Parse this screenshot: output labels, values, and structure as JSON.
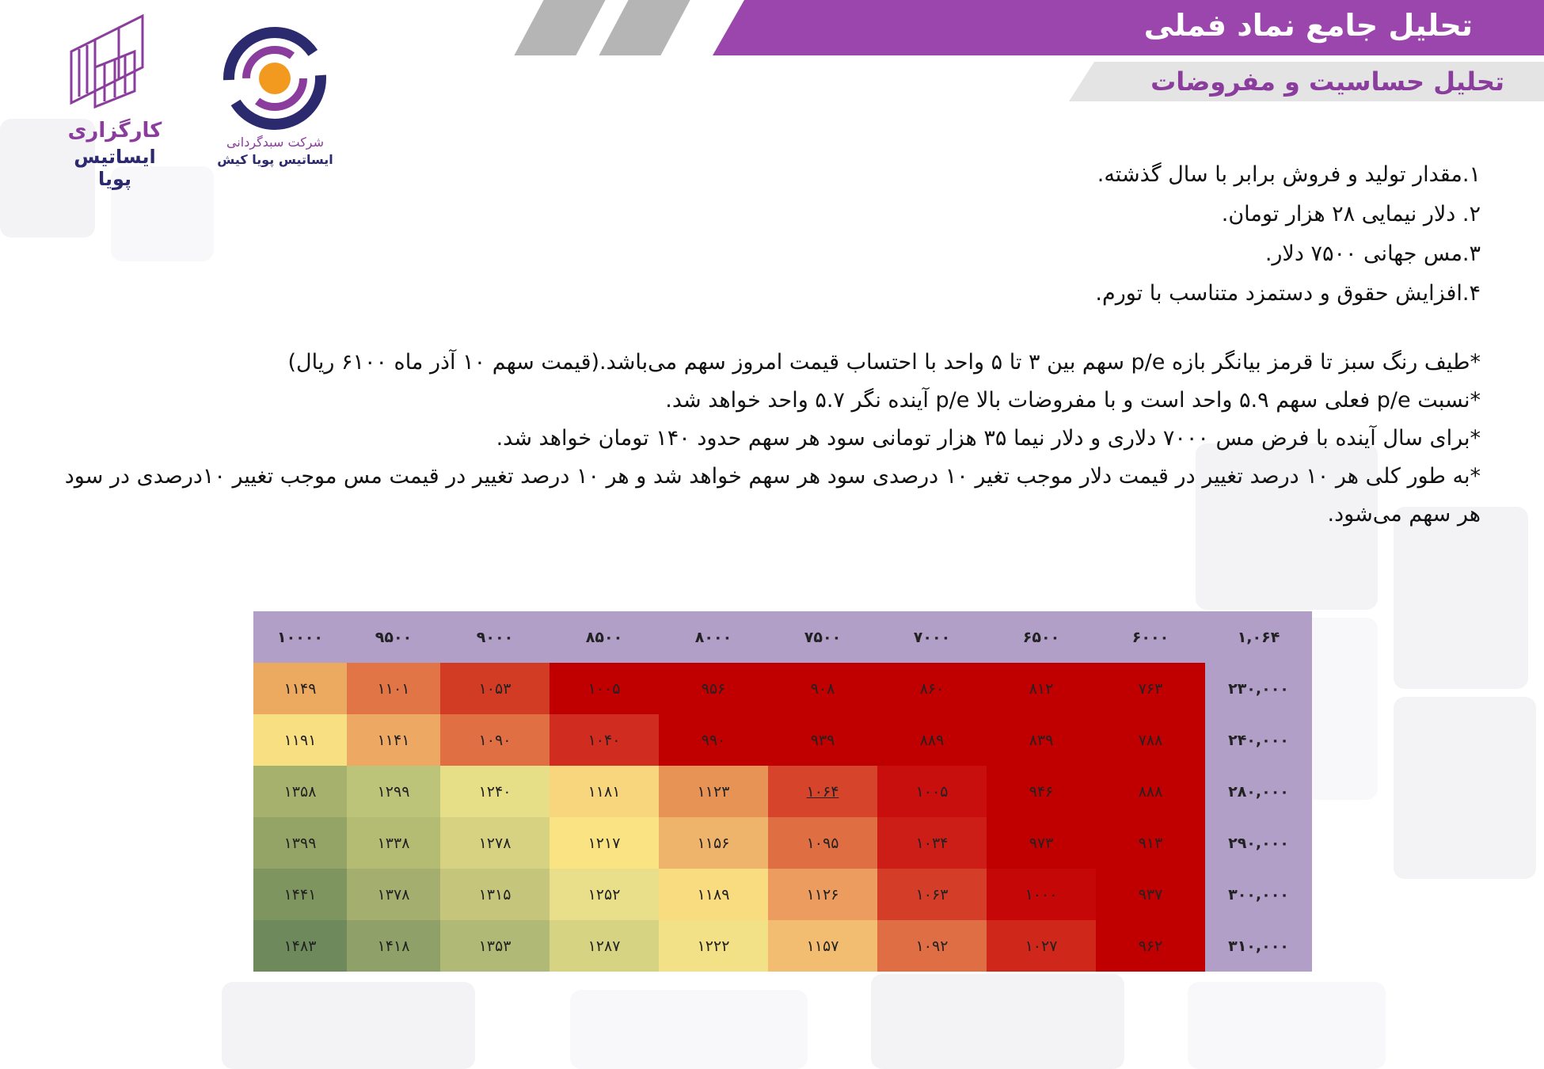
{
  "header": {
    "title": "تحلیل جامع نماد فملی",
    "subtitle": "تحلیل حساسیت و مفروضات"
  },
  "logos": {
    "broker_line1": "کارگزاری",
    "broker_line2": "ایساتیس پویا",
    "fund_line1": "شرکت سبدگردانی",
    "fund_line2": "ایساتیس پویا کیش"
  },
  "assumptions": [
    "۱.مقدار تولید و فروش برابر با سال گذشته.",
    "۲. دلار نیمایی ۲۸ هزار تومان.",
    "۳.مس جهانی ۷۵۰۰ دلار.",
    "۴.افزایش حقوق و دستمزد متناسب با تورم."
  ],
  "notes": [
    "*طیف رنگ سبز تا قرمز بیانگر بازه p/e سهم بین ۳ تا ۵ واحد با احتساب قیمت امروز سهم می‌باشد.(قیمت سهم ۱۰ آذر ماه ۶۱۰۰ ریال)",
    "*نسبت p/e فعلی سهم ۵.۹ واحد است و با مفروضات بالا p/e آینده نگر ۵.۷ واحد خواهد شد.",
    "*برای سال آینده با فرض مس ۷۰۰۰ دلاری و دلار نیما ۳۵ هزار تومانی سود هر سهم حدود ۱۴۰ تومان خواهد شد.",
    "*به طور کلی هر ۱۰ درصد تغییر در قیمت دلار موجب تغیر ۱۰ درصدی سود هر سهم خواهد شد و هر ۱۰ درصد تغییر در قیمت مس موجب تغییر ۱۰درصدی در سود هر سهم می‌شود."
  ],
  "table": {
    "corner": "۱,۰۶۴",
    "columns": [
      "۶۰۰۰",
      "۶۵۰۰",
      "۷۰۰۰",
      "۷۵۰۰",
      "۸۰۰۰",
      "۸۵۰۰",
      "۹۰۰۰",
      "۹۵۰۰",
      "۱۰۰۰۰"
    ],
    "rows": [
      {
        "label": "۲۳۰,۰۰۰",
        "values": [
          "۷۶۳",
          "۸۱۲",
          "۸۶۰",
          "۹۰۸",
          "۹۵۶",
          "۱۰۰۵",
          "۱۰۵۳",
          "۱۱۰۱",
          "۱۱۴۹"
        ],
        "colors": [
          "#c00000",
          "#c00000",
          "#c00000",
          "#c00000",
          "#c00000",
          "#c00000",
          "#d23c24",
          "#e17546",
          "#eca960"
        ]
      },
      {
        "label": "۲۴۰,۰۰۰",
        "values": [
          "۷۸۸",
          "۸۳۹",
          "۸۸۹",
          "۹۳۹",
          "۹۹۰",
          "۱۰۴۰",
          "۱۰۹۰",
          "۱۱۴۱",
          "۱۱۹۱"
        ],
        "colors": [
          "#c00000",
          "#c00000",
          "#c00000",
          "#c00000",
          "#c00000",
          "#d02c20",
          "#e16f44",
          "#eda864",
          "#f8df82"
        ]
      },
      {
        "label": "۲۸۰,۰۰۰",
        "values": [
          "۸۸۸",
          "۹۴۶",
          "۱۰۰۵",
          "۱۰۶۴",
          "۱۱۲۳",
          "۱۱۸۱",
          "۱۲۴۰",
          "۱۲۹۹",
          "۱۳۵۸"
        ],
        "colors": [
          "#c00000",
          "#c00000",
          "#c90e0e",
          "#d6442b",
          "#e69355",
          "#f7d67e",
          "#e6df88",
          "#bcc47a",
          "#a6b16e"
        ]
      },
      {
        "label": "۲۹۰,۰۰۰",
        "values": [
          "۹۱۳",
          "۹۷۳",
          "۱۰۳۴",
          "۱۰۹۵",
          "۱۱۵۶",
          "۱۲۱۷",
          "۱۲۷۸",
          "۱۳۳۸",
          "۱۳۹۹"
        ],
        "colors": [
          "#c00000",
          "#c00000",
          "#cc1e16",
          "#df6e42",
          "#efb46c",
          "#fae382",
          "#d6d282",
          "#b4bc74",
          "#94a366"
        ]
      },
      {
        "label": "۳۰۰,۰۰۰",
        "values": [
          "۹۳۷",
          "۱۰۰۰",
          "۱۰۶۳",
          "۱۱۲۶",
          "۱۱۸۹",
          "۱۲۵۲",
          "۱۳۱۵",
          "۱۳۷۸",
          "۱۴۴۱"
        ],
        "colors": [
          "#c00000",
          "#c60707",
          "#d43e28",
          "#eb9c5e",
          "#f9dc80",
          "#e9df8a",
          "#c6c57c",
          "#a4ae6e",
          "#7f9560"
        ]
      },
      {
        "label": "۳۱۰,۰۰۰",
        "values": [
          "۹۶۲",
          "۱۰۲۷",
          "۱۰۹۲",
          "۱۱۵۷",
          "۱۲۲۲",
          "۱۲۸۷",
          "۱۳۵۳",
          "۱۴۱۸",
          "۱۴۸۳"
        ],
        "colors": [
          "#c00000",
          "#cf2719",
          "#e06e44",
          "#f2bd70",
          "#f3e188",
          "#d6d382",
          "#b0ba76",
          "#8fa168",
          "#6e8a5c"
        ]
      }
    ],
    "highlight": {
      "row": 2,
      "col": 3
    }
  }
}
